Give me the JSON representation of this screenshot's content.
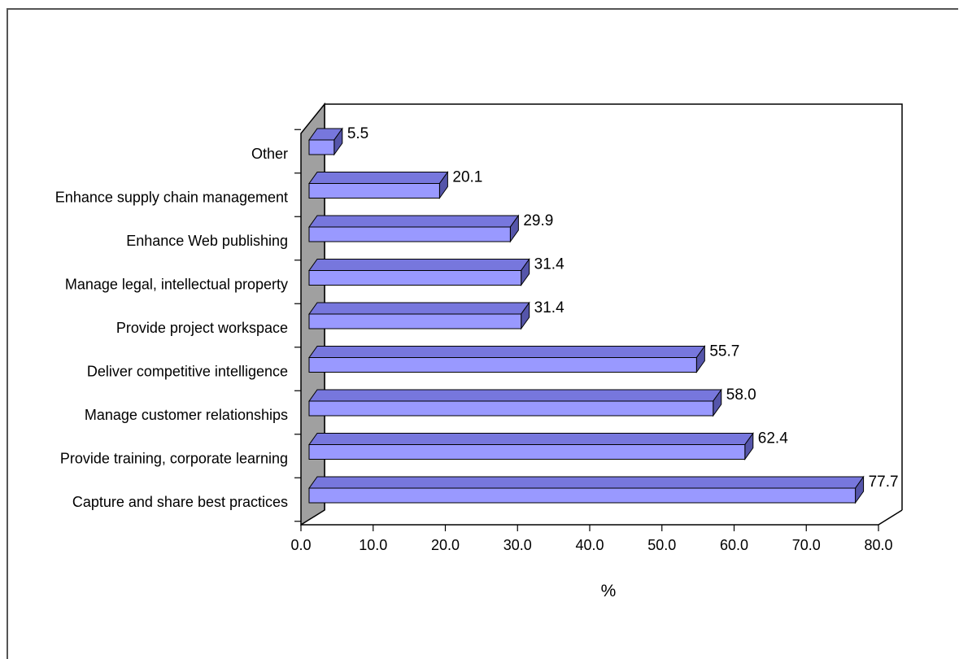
{
  "chart_data": {
    "type": "bar",
    "orientation": "horizontal",
    "categories": [
      "Capture and share best practices",
      "Provide training, corporate learning",
      "Manage customer relationships",
      "Deliver competitive intelligence",
      "Provide project workspace",
      "Manage legal, intellectual property",
      "Enhance Web publishing",
      "Enhance supply chain management",
      "Other"
    ],
    "values": [
      77.7,
      62.4,
      58.0,
      55.7,
      31.4,
      31.4,
      29.9,
      20.1,
      5.5
    ],
    "value_labels": [
      "77.7",
      "62.4",
      "58.0",
      "55.7",
      "31.4",
      "31.4",
      "29.9",
      "20.1",
      "5.5"
    ],
    "x_ticks": [
      "0.0",
      "10.0",
      "20.0",
      "30.0",
      "40.0",
      "50.0",
      "60.0",
      "70.0",
      "80.0"
    ],
    "xlim": [
      0,
      80
    ],
    "xlabel": "%",
    "ylabel": "",
    "title": "",
    "grid": false,
    "legend": "none",
    "style": "3d",
    "colors": {
      "bar_face": "#9999ff",
      "bar_top": "#7777dd",
      "bar_side": "#5555aa",
      "wall": "#a0a0a0",
      "axis": "#000000"
    }
  }
}
